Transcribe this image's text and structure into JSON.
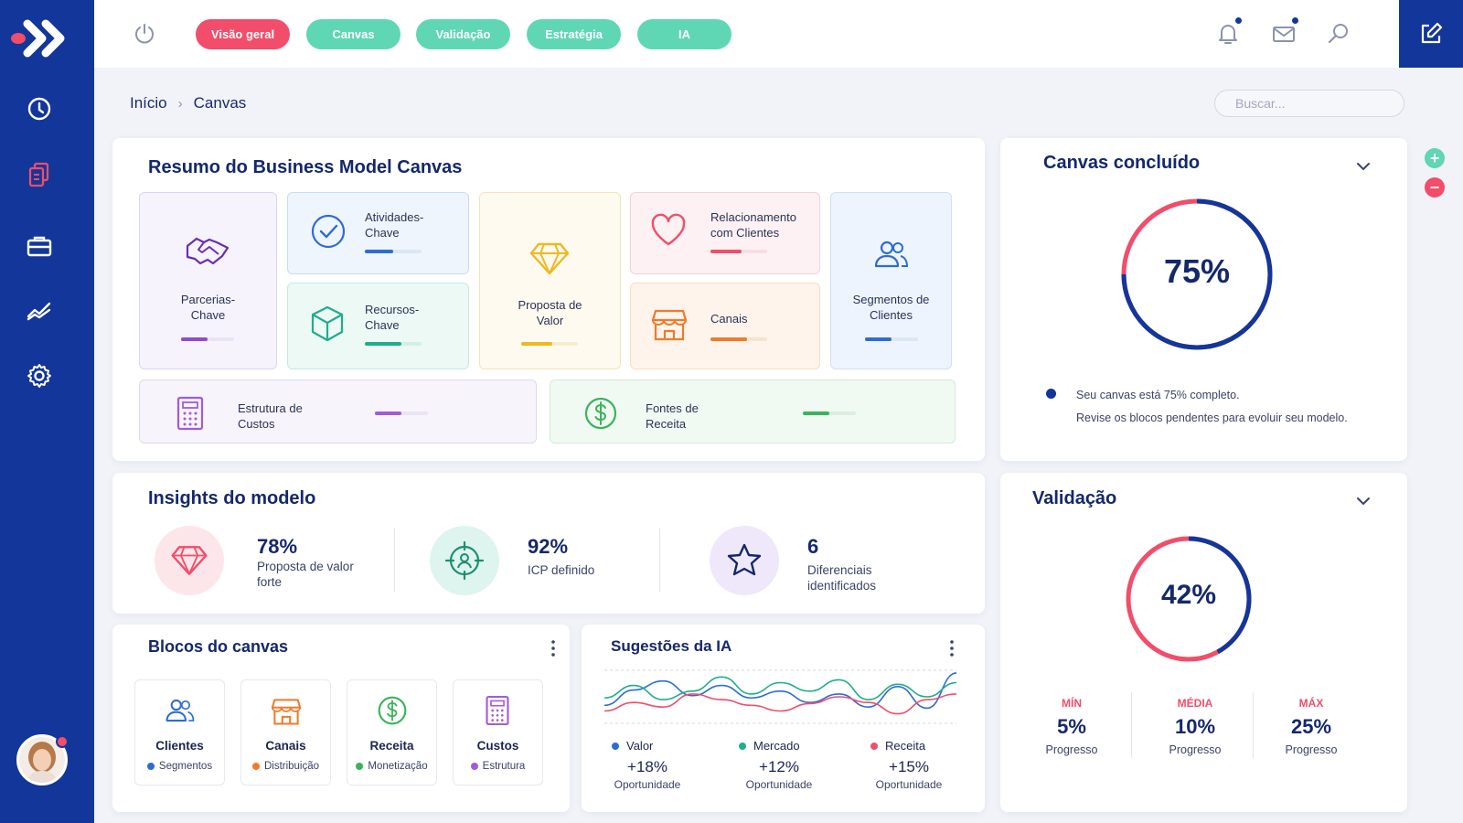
{
  "nav": {
    "tabs": [
      {
        "label": "Visão geral",
        "active": true
      },
      {
        "label": "Canvas",
        "active": false
      },
      {
        "label": "Validação",
        "active": false
      },
      {
        "label": "Estratégia",
        "active": false
      },
      {
        "label": "IA",
        "active": false
      }
    ],
    "sidebar_icons": [
      "clock-icon",
      "documents-icon",
      "briefcase-icon",
      "trend-icon",
      "gear-icon"
    ],
    "top_icons": [
      "power-icon",
      "bell-icon",
      "mail-icon",
      "search-icon",
      "edit-icon"
    ]
  },
  "breadcrumb": {
    "home": "Início",
    "current": "Canvas"
  },
  "search": {
    "placeholder": "Buscar..."
  },
  "bmc": {
    "title": "Resumo do Business Model Canvas",
    "blocks": [
      {
        "label": "Parcerias-\nChave",
        "progress": 0.5,
        "color": "#8e4bd1"
      },
      {
        "label": "Atividades-\nChave",
        "progress": 0.5,
        "color": "#2f6bd8"
      },
      {
        "label": "Recursos-\nChave",
        "progress": 0.65,
        "color": "#1fae8c"
      },
      {
        "label": "Proposta de\nValor",
        "progress": 0.55,
        "color": "#f0b81f"
      },
      {
        "label": "Relacionamento\ncom Clientes",
        "progress": 0.55,
        "color": "#f24d6a"
      },
      {
        "label": "Canais",
        "progress": 0.65,
        "color": "#f07a2a"
      },
      {
        "label": "Segmentos de\nClientes",
        "progress": 0.5,
        "color": "#2f6bd8"
      },
      {
        "label": "Estrutura de\nCustos",
        "progress": 0.5,
        "color": "#a35ad8"
      },
      {
        "label": "Fontes de\nReceita",
        "progress": 0.5,
        "color": "#3bb35a"
      }
    ]
  },
  "canvas_done": {
    "title": "Canvas concluído",
    "percent_label": "75%",
    "percent": 0.75,
    "line1": "Seu canvas está 75% completo.",
    "line2": "Revise os blocos pendentes para evoluir seu modelo."
  },
  "insights": {
    "title": "Insights do modelo",
    "items": [
      {
        "value": "78%",
        "label": "Proposta de valor\nforte",
        "icon": "diamond-icon"
      },
      {
        "value": "92%",
        "label": "ICP definido",
        "icon": "target-user-icon"
      },
      {
        "value": "6",
        "label": "Diferenciais\nidentificados",
        "icon": "star-icon"
      }
    ]
  },
  "blocks_card": {
    "title": "Blocos do canvas",
    "items": [
      {
        "name": "Clientes",
        "sub": "Segmentos",
        "color": "#2f6bd8",
        "icon": "users-icon"
      },
      {
        "name": "Canais",
        "sub": "Distribuição",
        "color": "#f07a2a",
        "icon": "store-icon"
      },
      {
        "name": "Receita",
        "sub": "Monetização",
        "color": "#3bb35a",
        "icon": "dollar-icon"
      },
      {
        "name": "Custos",
        "sub": "Estrutura",
        "color": "#a35ad8",
        "icon": "calculator-icon"
      }
    ]
  },
  "ai": {
    "title": "Sugestões da IA",
    "legend": [
      {
        "name": "Valor",
        "value": "+18%",
        "sub": "Oportunidade",
        "color": "#2f6bd8"
      },
      {
        "name": "Mercado",
        "value": "+12%",
        "sub": "Oportunidade",
        "color": "#1fae8c"
      },
      {
        "name": "Receita",
        "value": "+15%",
        "sub": "Oportunidade",
        "color": "#f24d6a"
      }
    ]
  },
  "chart_data": {
    "type": "line",
    "title": "",
    "xlabel": "",
    "ylabel": "",
    "grid": true,
    "series": [
      {
        "name": "Valor",
        "values": [
          35,
          62,
          78,
          52,
          70,
          48,
          60,
          40,
          55,
          32,
          68,
          30,
          92
        ]
      },
      {
        "name": "Mercado",
        "values": [
          48,
          70,
          45,
          60,
          85,
          55,
          75,
          60,
          80,
          45,
          72,
          50,
          75
        ]
      },
      {
        "name": "Receita",
        "values": [
          25,
          40,
          32,
          55,
          45,
          35,
          25,
          38,
          50,
          40,
          20,
          45,
          55
        ]
      }
    ]
  },
  "validation": {
    "title": "Validação",
    "percent_label": "42%",
    "percent": 0.42,
    "stats": [
      {
        "head": "MÍN",
        "value": "5%",
        "sub": "Progresso"
      },
      {
        "head": "MÉDIA",
        "value": "10%",
        "sub": "Progresso"
      },
      {
        "head": "MÁX",
        "value": "25%",
        "sub": "Progresso"
      }
    ]
  },
  "colors": {
    "brand": "#13369a",
    "accent": "#f24d6a",
    "teal": "#5fd6b4"
  }
}
